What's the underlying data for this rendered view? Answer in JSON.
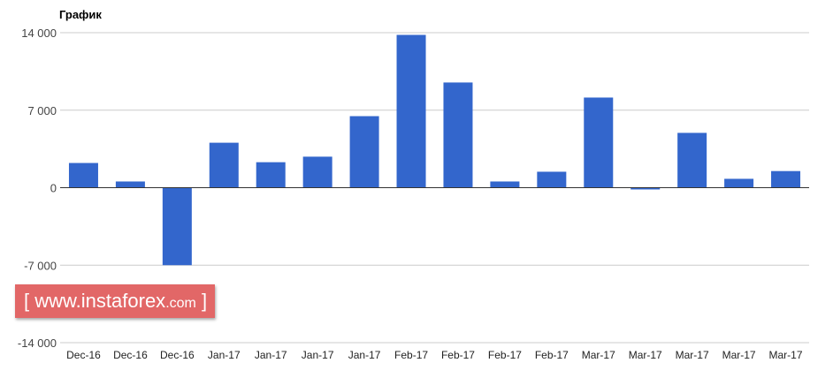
{
  "chart_data": {
    "type": "bar",
    "title": "График",
    "categories": [
      "Dec-16",
      "Dec-16",
      "Dec-16",
      "Jan-17",
      "Jan-17",
      "Jan-17",
      "Jan-17",
      "Feb-17",
      "Feb-17",
      "Feb-17",
      "Feb-17",
      "Mar-17",
      "Mar-17",
      "Mar-17",
      "Mar-17",
      "Mar-17"
    ],
    "values": [
      2230,
      560,
      -7000,
      4060,
      2300,
      2800,
      6460,
      13800,
      9500,
      560,
      1440,
      8140,
      -160,
      4950,
      800,
      1500
    ],
    "ylim": [
      -14000,
      14000
    ],
    "yticks": [
      14000,
      7000,
      0,
      -7000,
      -14000
    ],
    "ytick_labels": [
      "14 000",
      "7 000",
      "0",
      "-7 000",
      "-14 000"
    ],
    "grid": true,
    "bar_color": "#3366cc",
    "xlabel": "",
    "ylabel": ""
  },
  "watermark": {
    "text": "www.instaforex",
    "suffix": ".com"
  }
}
